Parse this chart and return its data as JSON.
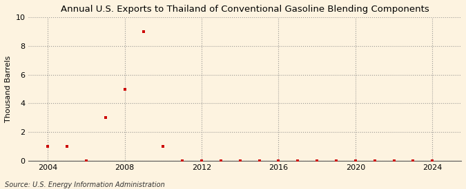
{
  "title": "Annual U.S. Exports to Thailand of Conventional Gasoline Blending Components",
  "ylabel": "Thousand Barrels",
  "source": "Source: U.S. Energy Information Administration",
  "background_color": "#fdf3e0",
  "marker_color": "#cc0000",
  "xlim": [
    2003.0,
    2025.5
  ],
  "ylim": [
    0,
    10
  ],
  "xticks": [
    2004,
    2008,
    2012,
    2016,
    2020,
    2024
  ],
  "yticks": [
    0,
    2,
    4,
    6,
    8,
    10
  ],
  "data": {
    "2004": 1,
    "2005": 1,
    "2006": 0,
    "2007": 3,
    "2008": 5,
    "2009": 9,
    "2010": 1,
    "2011": 0,
    "2012": 0,
    "2013": 0,
    "2014": 0,
    "2015": 0,
    "2016": 0,
    "2017": 0,
    "2018": 0,
    "2019": 0,
    "2020": 0,
    "2021": 0,
    "2022": 0,
    "2023": 0,
    "2024": 0
  },
  "title_fontsize": 9.5,
  "ylabel_fontsize": 8,
  "tick_fontsize": 8,
  "source_fontsize": 7
}
